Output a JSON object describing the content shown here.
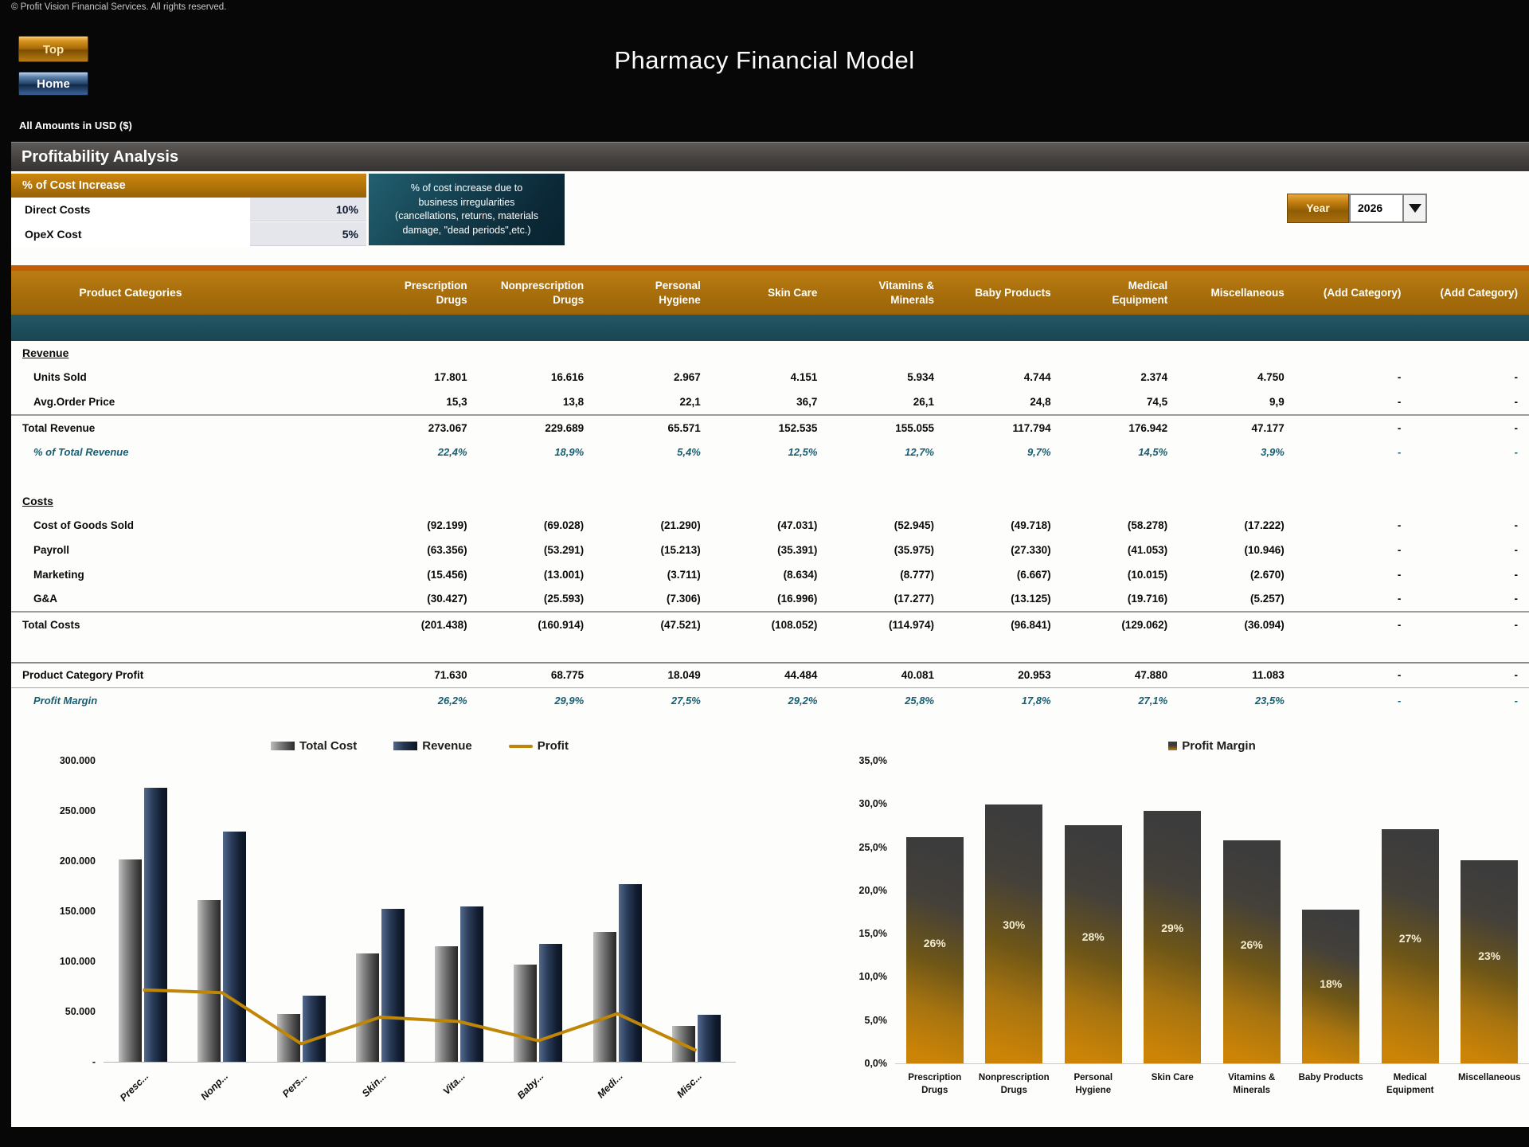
{
  "page": {
    "copyright": "© Profit Vision Financial Services. All rights reserved.",
    "title": "Pharmacy Financial Model",
    "top_button": "Top",
    "home_button": "Home",
    "amounts_note": "All Amounts in  USD ($)",
    "section_title": "Profitability Analysis"
  },
  "controls": {
    "cost_increase_title": "% of Cost Increase",
    "inputs": [
      {
        "label": "Direct Costs",
        "value": "10%"
      },
      {
        "label": "OpeX Cost",
        "value": "5%"
      }
    ],
    "note": "% of cost increase due to\nbusiness irregularities\n(cancellations, returns, materials\ndamage, \"dead periods\",etc.)",
    "year_label": "Year",
    "year_value": "2026"
  },
  "table": {
    "corner_header": "Product Categories",
    "columns": [
      "Prescription\nDrugs",
      "Nonprescription\nDrugs",
      "Personal\nHygiene",
      "Skin Care",
      "Vitamins &\nMinerals",
      "Baby Products",
      "Medical\nEquipment",
      "Miscellaneous",
      "(Add Category)",
      "(Add Category)"
    ],
    "rows": [
      {
        "label": "Revenue",
        "style": "section",
        "values": [
          "",
          "",
          "",
          "",
          "",
          "",
          "",
          "",
          "",
          ""
        ]
      },
      {
        "label": "Units Sold",
        "style": "item",
        "values": [
          "17.801",
          "16.616",
          "2.967",
          "4.151",
          "5.934",
          "4.744",
          "2.374",
          "4.750",
          "-",
          "-"
        ]
      },
      {
        "label": "Avg.Order Price",
        "style": "item underline",
        "values": [
          "15,3",
          "13,8",
          "22,1",
          "36,7",
          "26,1",
          "24,8",
          "74,5",
          "9,9",
          "-",
          "-"
        ]
      },
      {
        "label": "Total Revenue",
        "style": "total",
        "values": [
          "273.067",
          "229.689",
          "65.571",
          "152.535",
          "155.055",
          "117.794",
          "176.942",
          "47.177",
          "-",
          "-"
        ]
      },
      {
        "label": "% of Total Revenue",
        "style": "percent",
        "values": [
          "22,4%",
          "18,9%",
          "5,4%",
          "12,5%",
          "12,7%",
          "9,7%",
          "14,5%",
          "3,9%",
          "-",
          "-"
        ]
      },
      {
        "label": "",
        "style": "spacer",
        "values": []
      },
      {
        "label": "Costs",
        "style": "section",
        "values": [
          "",
          "",
          "",
          "",
          "",
          "",
          "",
          "",
          "",
          ""
        ]
      },
      {
        "label": "Cost of Goods Sold",
        "style": "item",
        "values": [
          "(92.199)",
          "(69.028)",
          "(21.290)",
          "(47.031)",
          "(52.945)",
          "(49.718)",
          "(58.278)",
          "(17.222)",
          "-",
          "-"
        ]
      },
      {
        "label": "Payroll",
        "style": "item",
        "values": [
          "(63.356)",
          "(53.291)",
          "(15.213)",
          "(35.391)",
          "(35.975)",
          "(27.330)",
          "(41.053)",
          "(10.946)",
          "-",
          "-"
        ]
      },
      {
        "label": "Marketing",
        "style": "item",
        "values": [
          "(15.456)",
          "(13.001)",
          "(3.711)",
          "(8.634)",
          "(8.777)",
          "(6.667)",
          "(10.015)",
          "(2.670)",
          "-",
          "-"
        ]
      },
      {
        "label": "G&A",
        "style": "item underline",
        "values": [
          "(30.427)",
          "(25.593)",
          "(7.306)",
          "(16.996)",
          "(17.277)",
          "(13.125)",
          "(19.716)",
          "(5.257)",
          "-",
          "-"
        ]
      },
      {
        "label": "Total Costs",
        "style": "total",
        "values": [
          "(201.438)",
          "(160.914)",
          "(47.521)",
          "(108.052)",
          "(114.974)",
          "(96.841)",
          "(129.062)",
          "(36.094)",
          "-",
          "-"
        ]
      },
      {
        "label": "",
        "style": "spacer",
        "values": []
      },
      {
        "label": "Product Category Profit",
        "style": "total topline",
        "values": [
          "71.630",
          "68.775",
          "18.049",
          "44.484",
          "40.081",
          "20.953",
          "47.880",
          "11.083",
          "-",
          "-"
        ]
      },
      {
        "label": "Profit Margin",
        "style": "percent topline2",
        "values": [
          "26,2%",
          "29,9%",
          "27,5%",
          "29,2%",
          "25,8%",
          "17,8%",
          "27,1%",
          "23,5%",
          "-",
          "-"
        ]
      }
    ]
  },
  "chart_data": [
    {
      "type": "bar+line",
      "legend": [
        "Total Cost",
        "Revenue",
        "Profit"
      ],
      "legend_position": "top",
      "categories": [
        "Presc...",
        "Nonp...",
        "Pers...",
        "Skin...",
        "Vita...",
        "Baby...",
        "Medi...",
        "Misc..."
      ],
      "series": [
        {
          "name": "Total Cost",
          "values": [
            201438,
            160914,
            47521,
            108052,
            114974,
            96841,
            129062,
            36094
          ]
        },
        {
          "name": "Revenue",
          "values": [
            273067,
            229689,
            65571,
            152535,
            155055,
            117794,
            176942,
            47177
          ]
        },
        {
          "name": "Profit",
          "values": [
            71630,
            68775,
            18049,
            44484,
            40081,
            20953,
            47880,
            11083
          ]
        }
      ],
      "ylim": [
        0,
        300000
      ],
      "yticks": [
        "300.000",
        "250.000",
        "200.000",
        "150.000",
        "100.000",
        "50.000",
        "-"
      ],
      "grid": false
    },
    {
      "type": "bar",
      "legend": [
        "Profit Margin"
      ],
      "legend_position": "top",
      "categories": [
        "Prescription\nDrugs",
        "Nonprescription\nDrugs",
        "Personal\nHygiene",
        "Skin Care",
        "Vitamins &\nMinerals",
        "Baby Products",
        "Medical\nEquipment",
        "Miscellaneous"
      ],
      "values": [
        26.2,
        29.9,
        27.5,
        29.2,
        25.8,
        17.8,
        27.1,
        23.5
      ],
      "bar_labels": [
        "26%",
        "30%",
        "28%",
        "29%",
        "26%",
        "18%",
        "27%",
        "23%"
      ],
      "ylim": [
        0,
        35
      ],
      "yticks": [
        "35,0%",
        "30,0%",
        "25,0%",
        "20,0%",
        "15,0%",
        "10,0%",
        "5,0%",
        "0,0%"
      ],
      "grid": false
    }
  ],
  "colors": {
    "gold_accent": "#b8790f",
    "dark_orange_strip": "#c25f04",
    "teal_band": "#1d4f5d",
    "teal_text": "#155e74",
    "note_teal": "#143f4e",
    "profit_line": "#bf8608",
    "revenue_bar": "#16233a",
    "cost_bar": "#6b6b6b",
    "margin_bar_top": "#3c3c3c",
    "margin_bar_bottom": "#c07c06"
  }
}
